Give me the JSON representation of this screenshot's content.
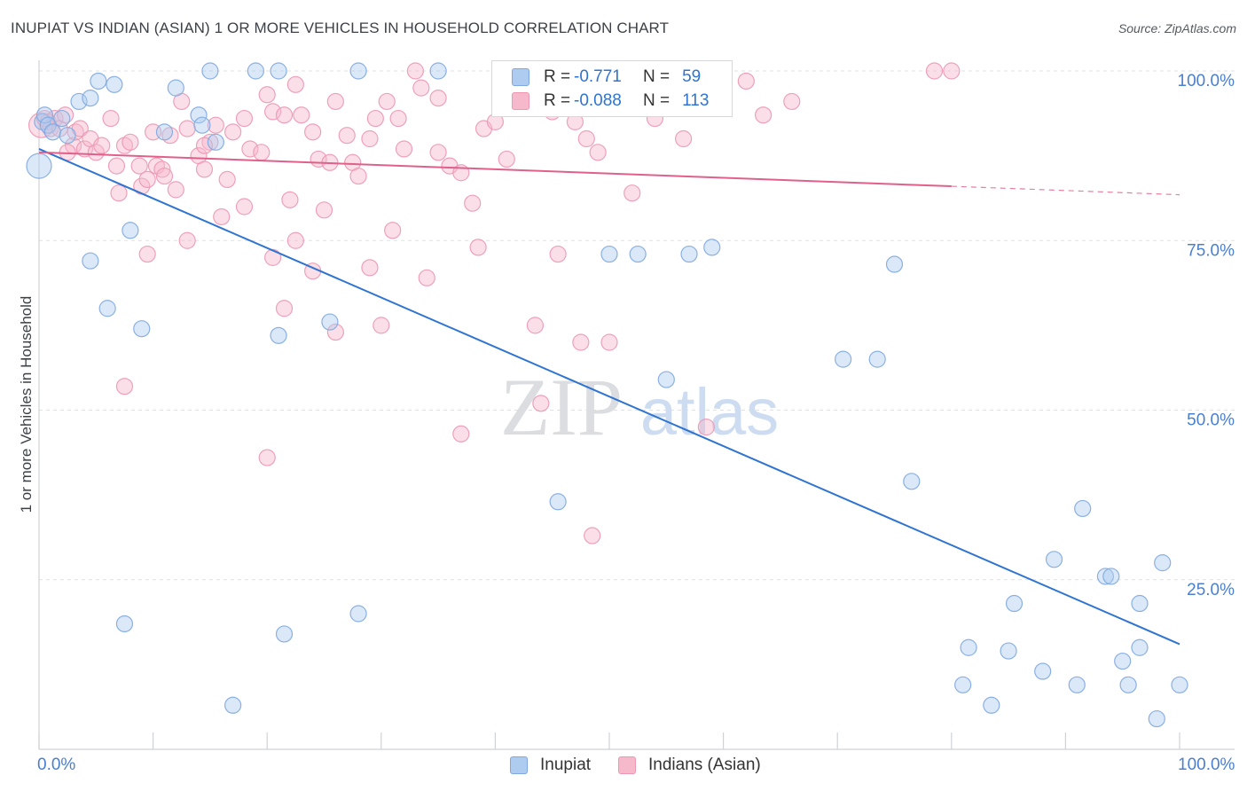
{
  "title": "INUPIAT VS INDIAN (ASIAN) 1 OR MORE VEHICLES IN HOUSEHOLD CORRELATION CHART",
  "source": "Source: ZipAtlas.com",
  "watermark": {
    "zip": "ZIP",
    "atlas": "atlas"
  },
  "legend_top": {
    "r_label": "R =",
    "n_label": "N =",
    "rows": [
      {
        "r": "-0.771",
        "n": "59"
      },
      {
        "r": "-0.088",
        "n": "113"
      }
    ]
  },
  "colors": {
    "blue_fill": "#aecbf0",
    "blue_stroke": "#7fa8e0",
    "blue_line": "#2e74d0",
    "pink_fill": "#f6b9cb",
    "pink_stroke": "#ec98b3",
    "pink_line": "#e0608a",
    "tick_text": "#4a7fd0"
  },
  "chart_data": {
    "type": "scatter",
    "title": "INUPIAT VS INDIAN (ASIAN) 1 OR MORE VEHICLES IN HOUSEHOLD CORRELATION CHART",
    "xlabel": "",
    "ylabel": "1 or more Vehicles in Household",
    "xlim": [
      0,
      100
    ],
    "ylim": [
      0,
      103
    ],
    "x_tick_labels": [
      "0.0%",
      "100.0%"
    ],
    "y_ticks": [
      25,
      50,
      75,
      100
    ],
    "y_tick_labels": [
      "25.0%",
      "50.0%",
      "75.0%",
      "100.0%"
    ],
    "legend_position": "bottom-center",
    "series": [
      {
        "name": "Inupiat",
        "trend": {
          "x0": 0,
          "y0": 88.5,
          "x1": 100,
          "y1": 15.5,
          "dashed_to": 100
        },
        "points": [
          [
            0.0,
            86.0
          ],
          [
            0.3,
            92.5
          ],
          [
            0.5,
            93.5
          ],
          [
            0.8,
            92.0
          ],
          [
            1.2,
            91.0
          ],
          [
            2.0,
            93.0
          ],
          [
            2.5,
            90.5
          ],
          [
            3.5,
            95.5
          ],
          [
            4.5,
            96.0
          ],
          [
            5.2,
            98.5
          ],
          [
            6.6,
            98.0
          ],
          [
            11.0,
            91.0
          ],
          [
            12.0,
            97.5
          ],
          [
            14.0,
            93.5
          ],
          [
            14.3,
            92.0
          ],
          [
            15.0,
            100.0
          ],
          [
            19.0,
            100.0
          ],
          [
            21.0,
            100.0
          ],
          [
            28.0,
            100.0
          ],
          [
            35.0,
            100.0
          ],
          [
            4.5,
            72.0
          ],
          [
            6.0,
            65.0
          ],
          [
            8.0,
            76.5
          ],
          [
            9.0,
            62.0
          ],
          [
            15.5,
            89.5
          ],
          [
            21.0,
            61.0
          ],
          [
            25.5,
            63.0
          ],
          [
            45.5,
            36.5
          ],
          [
            50.0,
            73.0
          ],
          [
            52.5,
            73.0
          ],
          [
            55.0,
            54.5
          ],
          [
            57.0,
            73.0
          ],
          [
            59.0,
            74.0
          ],
          [
            70.5,
            57.5
          ],
          [
            73.5,
            57.5
          ],
          [
            75.0,
            71.5
          ],
          [
            76.5,
            39.5
          ],
          [
            81.0,
            9.5
          ],
          [
            81.5,
            15.0
          ],
          [
            83.5,
            6.5
          ],
          [
            85.0,
            14.5
          ],
          [
            85.5,
            21.5
          ],
          [
            88.0,
            11.5
          ],
          [
            89.0,
            28.0
          ],
          [
            91.0,
            9.5
          ],
          [
            91.5,
            35.5
          ],
          [
            93.5,
            25.5
          ],
          [
            94.0,
            25.5
          ],
          [
            95.0,
            13.0
          ],
          [
            95.5,
            9.5
          ],
          [
            96.5,
            21.5
          ],
          [
            96.5,
            15.0
          ],
          [
            98.0,
            4.5
          ],
          [
            98.5,
            27.5
          ],
          [
            100.0,
            9.5
          ],
          [
            7.5,
            18.5
          ],
          [
            17.0,
            6.5
          ],
          [
            21.5,
            17.0
          ],
          [
            28.0,
            20.0
          ]
        ]
      },
      {
        "name": "Indians (Asian)",
        "trend": {
          "x0": 0,
          "y0": 88.0,
          "x1": 80,
          "y1": 83.0,
          "dashed_to": 100
        },
        "points": [
          [
            0.2,
            92.0
          ],
          [
            0.5,
            93.0
          ],
          [
            0.8,
            92.5
          ],
          [
            1.0,
            91.5
          ],
          [
            1.4,
            93.0
          ],
          [
            1.8,
            91.5
          ],
          [
            2.3,
            93.5
          ],
          [
            3.0,
            89.0
          ],
          [
            3.2,
            91.0
          ],
          [
            3.6,
            91.5
          ],
          [
            4.0,
            88.5
          ],
          [
            4.5,
            90.0
          ],
          [
            5.0,
            88.0
          ],
          [
            5.5,
            89.0
          ],
          [
            6.3,
            93.0
          ],
          [
            6.8,
            86.0
          ],
          [
            7.5,
            89.0
          ],
          [
            8.0,
            89.5
          ],
          [
            8.8,
            86.0
          ],
          [
            9.0,
            83.0
          ],
          [
            9.5,
            84.0
          ],
          [
            10.0,
            91.0
          ],
          [
            10.3,
            86.0
          ],
          [
            10.8,
            85.5
          ],
          [
            11.5,
            90.5
          ],
          [
            12.5,
            95.5
          ],
          [
            13.0,
            91.5
          ],
          [
            14.0,
            87.5
          ],
          [
            14.5,
            85.5
          ],
          [
            15.0,
            89.5
          ],
          [
            15.5,
            92.0
          ],
          [
            16.5,
            84.0
          ],
          [
            17.0,
            91.0
          ],
          [
            18.0,
            93.0
          ],
          [
            18.5,
            88.5
          ],
          [
            19.5,
            88.0
          ],
          [
            20.0,
            96.5
          ],
          [
            20.5,
            94.0
          ],
          [
            21.5,
            93.5
          ],
          [
            22.5,
            98.0
          ],
          [
            23.0,
            93.5
          ],
          [
            24.0,
            91.0
          ],
          [
            24.5,
            87.0
          ],
          [
            25.5,
            86.5
          ],
          [
            26.0,
            95.5
          ],
          [
            27.0,
            90.5
          ],
          [
            27.5,
            86.5
          ],
          [
            28.0,
            84.5
          ],
          [
            29.0,
            90.0
          ],
          [
            29.5,
            93.0
          ],
          [
            30.5,
            95.5
          ],
          [
            31.5,
            93.0
          ],
          [
            32.0,
            88.5
          ],
          [
            33.0,
            100.0
          ],
          [
            33.5,
            97.5
          ],
          [
            35.0,
            88.0
          ],
          [
            36.0,
            86.0
          ],
          [
            37.0,
            85.0
          ],
          [
            38.0,
            80.5
          ],
          [
            39.0,
            91.5
          ],
          [
            40.0,
            92.5
          ],
          [
            41.0,
            87.0
          ],
          [
            42.0,
            97.0
          ],
          [
            43.0,
            95.0
          ],
          [
            44.0,
            96.5
          ],
          [
            45.0,
            94.0
          ],
          [
            46.5,
            100.0
          ],
          [
            47.0,
            92.5
          ],
          [
            48.0,
            90.0
          ],
          [
            49.0,
            88.0
          ],
          [
            45.5,
            73.0
          ],
          [
            47.5,
            60.0
          ],
          [
            48.5,
            31.5
          ],
          [
            52.5,
            98.5
          ],
          [
            55.5,
            96.0
          ],
          [
            56.0,
            95.0
          ],
          [
            56.5,
            90.0
          ],
          [
            58.5,
            47.5
          ],
          [
            62.0,
            98.5
          ],
          [
            63.5,
            93.5
          ],
          [
            66.0,
            95.5
          ],
          [
            78.5,
            100.0
          ],
          [
            80.0,
            100.0
          ],
          [
            54.0,
            93.0
          ],
          [
            43.5,
            62.5
          ],
          [
            38.5,
            74.0
          ],
          [
            24.0,
            70.5
          ],
          [
            25.0,
            79.5
          ],
          [
            31.0,
            76.5
          ],
          [
            34.0,
            69.5
          ],
          [
            35.0,
            96.0
          ],
          [
            22.5,
            75.0
          ],
          [
            16.0,
            78.5
          ],
          [
            13.0,
            75.0
          ],
          [
            9.5,
            73.0
          ],
          [
            7.0,
            82.0
          ],
          [
            18.0,
            80.0
          ],
          [
            20.5,
            72.5
          ],
          [
            21.5,
            65.0
          ],
          [
            26.0,
            61.5
          ],
          [
            29.0,
            71.0
          ],
          [
            30.0,
            62.5
          ],
          [
            37.0,
            46.5
          ],
          [
            44.0,
            51.0
          ],
          [
            50.0,
            60.0
          ],
          [
            52.0,
            82.0
          ],
          [
            2.5,
            88.0
          ],
          [
            7.5,
            53.5
          ],
          [
            20.0,
            43.0
          ],
          [
            22.0,
            81.0
          ],
          [
            11.0,
            84.5
          ],
          [
            14.5,
            89.0
          ],
          [
            12.0,
            82.5
          ]
        ]
      }
    ]
  },
  "bottom_legend": {
    "items": [
      "Inupiat",
      "Indians (Asian)"
    ]
  }
}
